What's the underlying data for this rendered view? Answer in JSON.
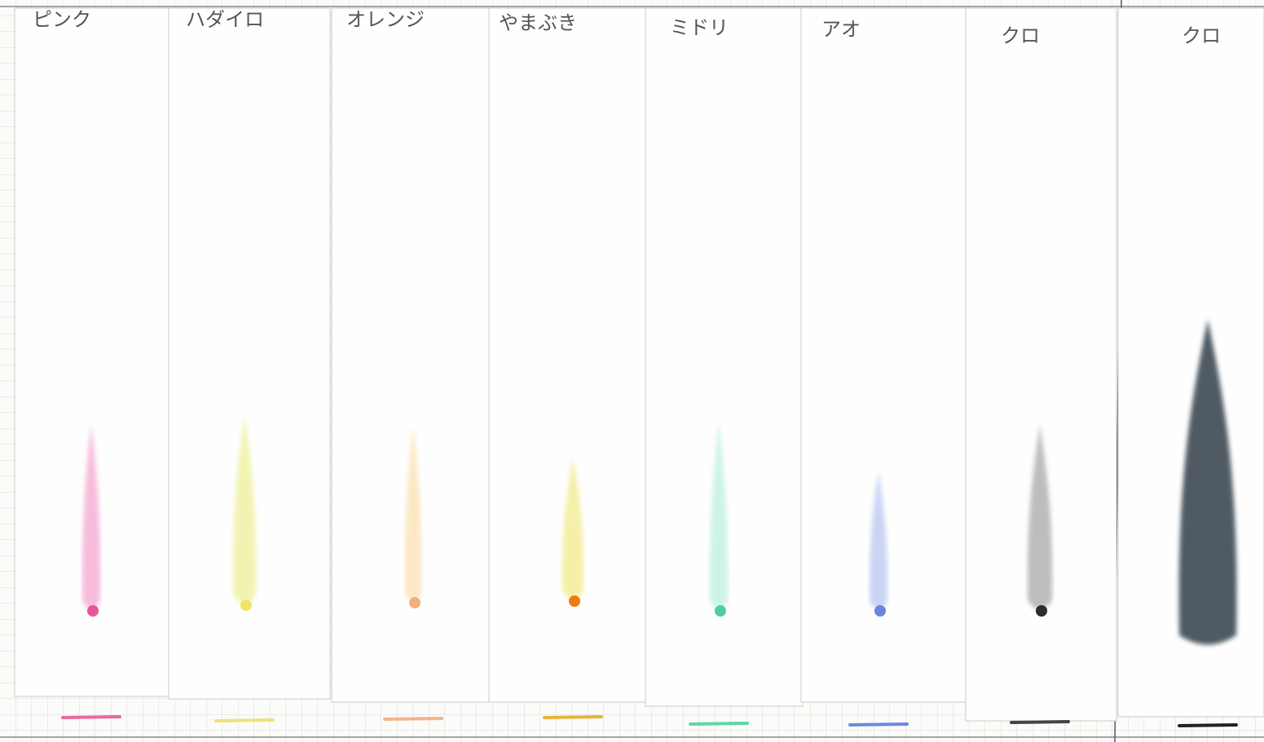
{
  "strips": [
    {
      "label": "ピンク"
    },
    {
      "label": "ハダイロ"
    },
    {
      "label": "オレンジ"
    },
    {
      "label": "やまぶき"
    },
    {
      "label": "ミドリ"
    },
    {
      "label": "アオ"
    },
    {
      "label": "クロ"
    },
    {
      "label": "クロ"
    }
  ]
}
